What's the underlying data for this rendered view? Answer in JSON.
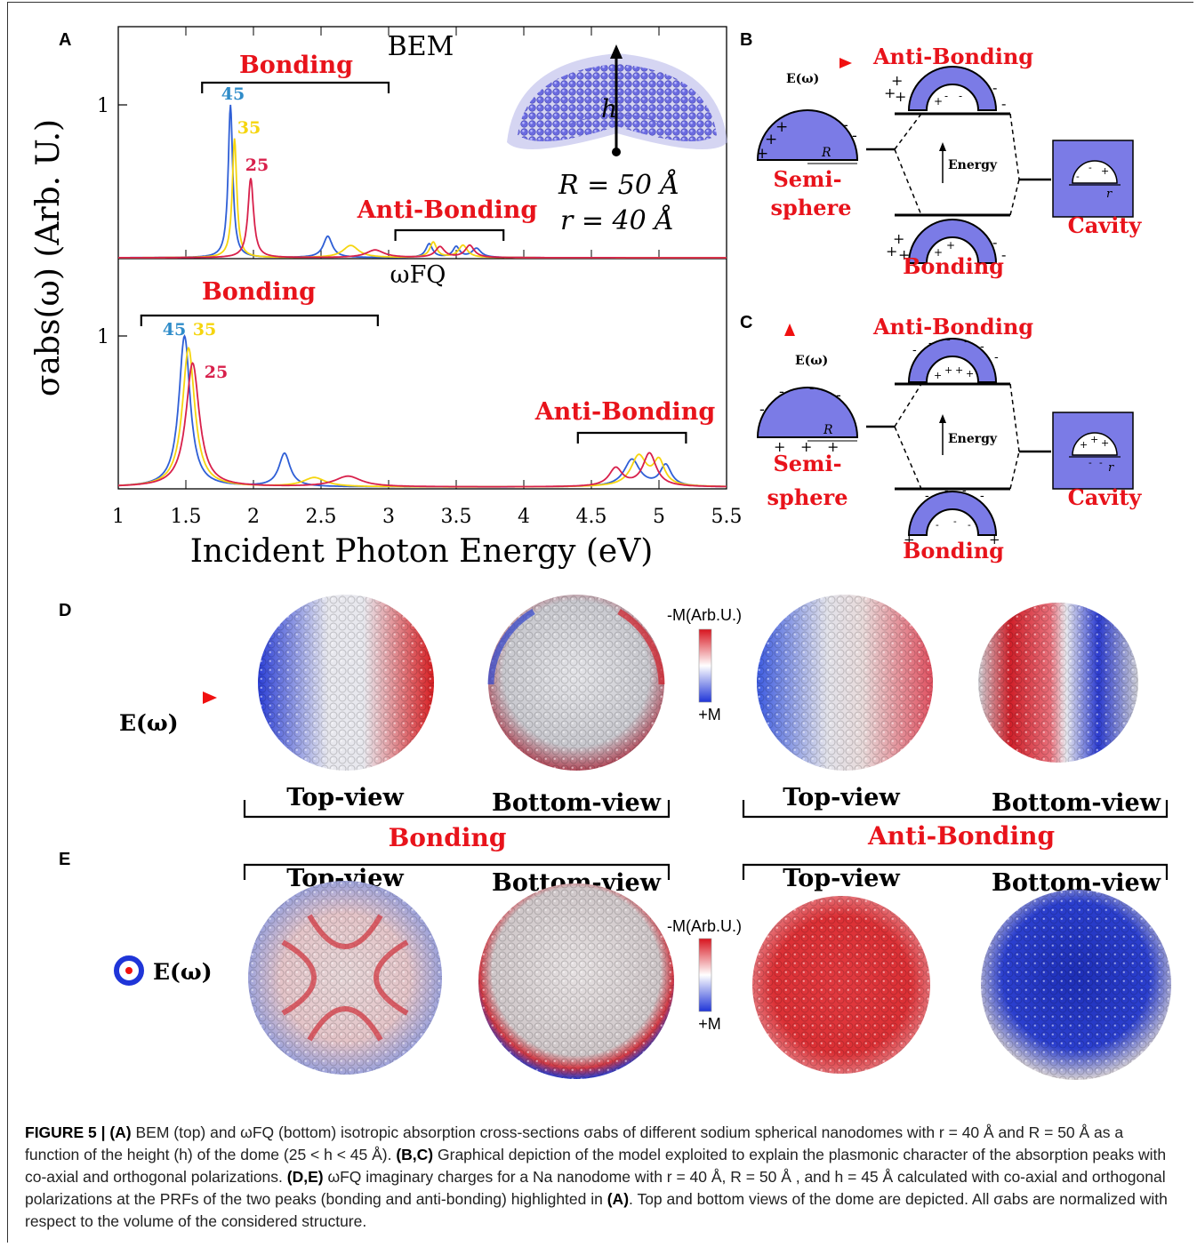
{
  "panel_labels": {
    "a": "A",
    "b": "B",
    "c": "C",
    "d": "D",
    "e": "E"
  },
  "chart_data": [
    {
      "type": "line",
      "title": "BEM",
      "xlim": [
        1,
        5.5
      ],
      "ylim": [
        0,
        1.0
      ],
      "y_ticks": [
        1
      ],
      "series": [
        {
          "name": "45",
          "color": "#2f5fd6",
          "peaks": [
            [
              1.83,
              1.0,
              0.02
            ],
            [
              2.55,
              0.14,
              0.04
            ],
            [
              3.3,
              0.09,
              0.03
            ],
            [
              3.5,
              0.07,
              0.03
            ],
            [
              3.65,
              0.06,
              0.04
            ]
          ]
        },
        {
          "name": "35",
          "color": "#f5d50f",
          "peaks": [
            [
              1.86,
              0.78,
              0.02
            ],
            [
              2.72,
              0.08,
              0.07
            ],
            [
              3.33,
              0.1,
              0.03
            ],
            [
              3.55,
              0.08,
              0.04
            ]
          ]
        },
        {
          "name": "25",
          "color": "#d8204b",
          "peaks": [
            [
              1.98,
              0.52,
              0.025
            ],
            [
              2.9,
              0.05,
              0.08
            ],
            [
              3.38,
              0.07,
              0.04
            ],
            [
              3.6,
              0.08,
              0.04
            ]
          ]
        }
      ],
      "annotations": {
        "bonding": "Bonding",
        "anti_bonding": "Anti-Bonding",
        "bonding_range": [
          1.62,
          3.0
        ],
        "anti_bonding_range": [
          3.05,
          3.85
        ]
      },
      "inset": {
        "h": "h",
        "R_text": "R = 50 Å",
        "r_text": "r = 40 Å"
      }
    },
    {
      "type": "line",
      "title": "ωFQ",
      "xlim": [
        1,
        5.5
      ],
      "ylim": [
        0,
        1.0
      ],
      "y_ticks": [
        1
      ],
      "x_ticks": [
        "1",
        "1.5",
        "2",
        "2.5",
        "3",
        "3.5",
        "4",
        "4.5",
        "5",
        "5.5"
      ],
      "xlabel": "Incident Photon Energy (eV)",
      "ylabel": "σabs(ω) (Arb. U.)",
      "series": [
        {
          "name": "45",
          "color": "#2f5fd6",
          "peaks": [
            [
              1.49,
              1.0,
              0.05
            ],
            [
              2.23,
              0.22,
              0.05
            ],
            [
              4.8,
              0.18,
              0.07
            ],
            [
              5.05,
              0.14,
              0.05
            ]
          ]
        },
        {
          "name": "35",
          "color": "#f5d50f",
          "peaks": [
            [
              1.52,
              0.92,
              0.055
            ],
            [
              2.45,
              0.06,
              0.1
            ],
            [
              4.85,
              0.2,
              0.07
            ],
            [
              5.0,
              0.16,
              0.05
            ]
          ]
        },
        {
          "name": "25",
          "color": "#d8204b",
          "peaks": [
            [
              1.55,
              0.82,
              0.06
            ],
            [
              2.7,
              0.07,
              0.12
            ],
            [
              4.68,
              0.12,
              0.06
            ],
            [
              4.93,
              0.22,
              0.06
            ]
          ]
        }
      ],
      "annotations": {
        "bonding": "Bonding",
        "anti_bonding": "Anti-Bonding",
        "bonding_range": [
          1.17,
          2.92
        ],
        "anti_bonding_range": [
          4.4,
          5.2
        ]
      }
    }
  ],
  "diagram_b": {
    "field": "E(ω)",
    "anti_bonding": "Anti-Bonding",
    "bonding": "Bonding",
    "energy": "Energy",
    "semi": "Semi-",
    "sphere": "sphere",
    "cavity": "Cavity",
    "R": "R",
    "r": "r"
  },
  "diagram_c": {
    "field": "E(ω)",
    "anti_bonding": "Anti-Bonding",
    "bonding": "Bonding",
    "energy": "Energy",
    "semi": "Semi-",
    "sphere": "sphere",
    "cavity": "Cavity",
    "R": "R",
    "r": "r"
  },
  "panel_d": {
    "field": "E(ω)",
    "colorbar_top": "-M(Arb.U.)",
    "colorbar_bottom": "+M",
    "top_view": "Top-view",
    "bottom_view": "Bottom-view",
    "bonding": "Bonding",
    "anti_bonding": "Anti-Bonding"
  },
  "panel_e": {
    "field": "E(ω)",
    "colorbar_top": "-M(Arb.U.)",
    "colorbar_bottom": "+M",
    "top_view": "Top-view",
    "bottom_view": "Bottom-view"
  },
  "caption": {
    "fig": "FIGURE 5 | ",
    "a_tag": "(A)",
    "a_text": " BEM (top) and ωFQ (bottom) isotropic absorption cross-sections σabs of different sodium spherical nanodomes with r = 40 Å and R = 50 Å as a function of the height (h) of the dome (25 < h < 45 Å). ",
    "bc_tag": "(B,C)",
    "bc_text": " Graphical depiction of the model exploited to explain the plasmonic character of the absorption peaks with co-axial and orthogonal polarizations. ",
    "de_tag": "(D,E)",
    "de_text": " ωFQ imaginary charges for a Na nanodome with r = 40 Å, R = 50 Å , and h = 45 Å calculated with co-axial and orthogonal polarizations at the PRFs of the two peaks (bonding and anti-bonding) highlighted in ",
    "a_ref": "(A)",
    "end_text": ". Top and bottom views of the dome are depicted. All σabs are normalized with respect to the volume of the considered structure."
  }
}
